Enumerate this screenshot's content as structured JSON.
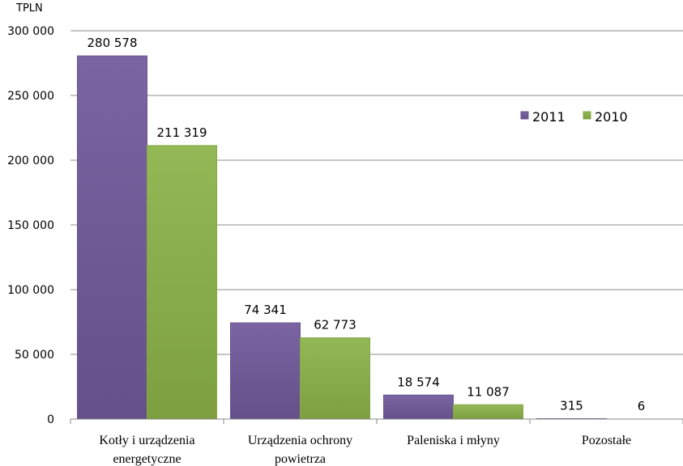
{
  "chart_data": {
    "type": "bar",
    "ylabel": "TPLN",
    "ylim": [
      0,
      300000
    ],
    "yticks": [
      0,
      50000,
      100000,
      150000,
      200000,
      250000,
      300000
    ],
    "ytick_labels": [
      "0",
      "50 000",
      "100 000",
      "150 000",
      "200 000",
      "250 000",
      "300 000"
    ],
    "grid": true,
    "legend_position": "top-right",
    "categories": [
      [
        "Kotły i urządzenia",
        "energetyczne"
      ],
      [
        "Urządzenia ochrony",
        "powietrza"
      ],
      [
        "Paleniska i młyny"
      ],
      [
        "Pozostałe"
      ]
    ],
    "series": [
      {
        "name": "2011",
        "color": "#6b5591",
        "values": [
          280578,
          74341,
          18574,
          315
        ],
        "labels": [
          "280 578",
          "74 341",
          "18 574",
          "315"
        ]
      },
      {
        "name": "2010",
        "color": "#84a846",
        "values": [
          211319,
          62773,
          11087,
          6
        ],
        "labels": [
          "211 319",
          "62 773",
          "11 087",
          "6"
        ]
      }
    ]
  }
}
